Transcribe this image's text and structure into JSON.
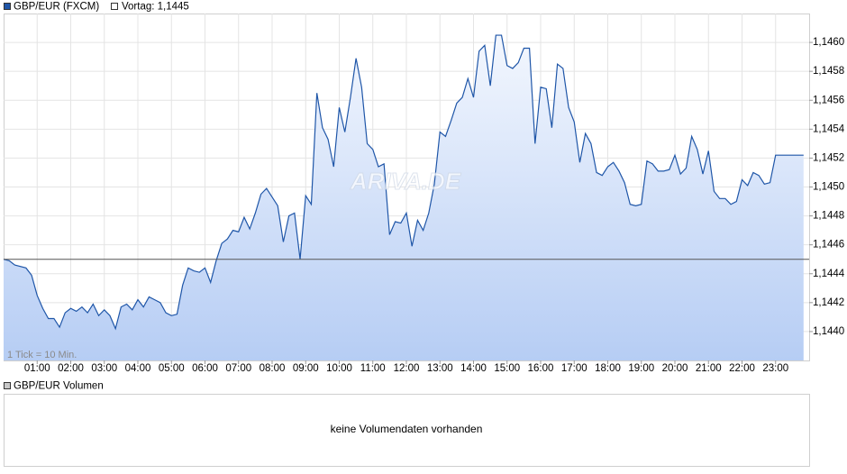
{
  "chart_data": {
    "type": "area",
    "annotation": "1 Tick = 10 Min.",
    "watermark": "ARIVA.DE",
    "x": [
      0,
      10,
      20,
      40,
      50,
      60,
      70,
      80,
      90,
      100,
      110,
      120,
      130,
      140,
      150,
      160,
      170,
      180,
      190,
      200,
      210,
      220,
      230,
      240,
      250,
      260,
      270,
      280,
      290,
      300,
      310,
      320,
      330,
      340,
      350,
      360,
      370,
      380,
      390,
      400,
      410,
      420,
      430,
      440,
      450,
      460,
      470,
      480,
      490,
      500,
      510,
      520,
      530,
      540,
      550,
      560,
      570,
      580,
      590,
      600,
      610,
      620,
      630,
      640,
      650,
      660,
      670,
      680,
      690,
      700,
      710,
      720,
      730,
      740,
      750,
      760,
      770,
      780,
      790,
      800,
      810,
      820,
      830,
      840,
      850,
      860,
      870,
      880,
      890,
      900,
      910,
      920,
      930,
      940,
      950,
      960,
      970,
      980,
      990,
      1000,
      1010,
      1020,
      1030,
      1040,
      1050,
      1060,
      1070,
      1080,
      1090,
      1100,
      1110,
      1120,
      1130,
      1140,
      1150,
      1160,
      1170,
      1180,
      1190,
      1200,
      1210,
      1220,
      1230,
      1240,
      1250,
      1260,
      1270,
      1280,
      1290,
      1300,
      1310,
      1320,
      1330,
      1340,
      1350,
      1360,
      1370,
      1380,
      1390,
      1430
    ],
    "series": [
      {
        "name": "GBP/EUR (FXCM)",
        "color": "#1f56a8",
        "values": [
          1.1445,
          1.14449,
          1.14446,
          1.14444,
          1.14439,
          1.14425,
          1.14416,
          1.14409,
          1.14409,
          1.14403,
          1.14413,
          1.14416,
          1.14414,
          1.14417,
          1.14413,
          1.14419,
          1.14411,
          1.14415,
          1.14411,
          1.14402,
          1.14417,
          1.14419,
          1.14415,
          1.14422,
          1.14417,
          1.14424,
          1.14422,
          1.1442,
          1.14413,
          1.14411,
          1.14412,
          1.14432,
          1.14444,
          1.14442,
          1.14441,
          1.14444,
          1.14434,
          1.14449,
          1.14461,
          1.14464,
          1.1447,
          1.14469,
          1.14479,
          1.14471,
          1.14482,
          1.14495,
          1.14499,
          1.14493,
          1.14487,
          1.14462,
          1.1448,
          1.14482,
          1.1445,
          1.14494,
          1.14488,
          1.14565,
          1.14541,
          1.14533,
          1.14514,
          1.14555,
          1.14538,
          1.14562,
          1.14589,
          1.14569,
          1.1453,
          1.14526,
          1.14514,
          1.14516,
          1.14467,
          1.14476,
          1.14475,
          1.14482,
          1.14459,
          1.14477,
          1.1447,
          1.14482,
          1.14502,
          1.14538,
          1.14535,
          1.14546,
          1.14558,
          1.14562,
          1.14575,
          1.14562,
          1.14594,
          1.14598,
          1.1457,
          1.14605,
          1.14605,
          1.14584,
          1.14582,
          1.14586,
          1.14596,
          1.14596,
          1.1453,
          1.14569,
          1.14568,
          1.14541,
          1.14585,
          1.14582,
          1.14555,
          1.14545,
          1.14517,
          1.14537,
          1.1453,
          1.1451,
          1.14508,
          1.14514,
          1.14517,
          1.14511,
          1.14503,
          1.14488,
          1.14487,
          1.14488,
          1.14518,
          1.14516,
          1.14511,
          1.14511,
          1.14512,
          1.14522,
          1.14509,
          1.14513,
          1.14535,
          1.14526,
          1.14509,
          1.14525,
          1.14497,
          1.14492,
          1.14492,
          1.14488,
          1.1449,
          1.14505,
          1.14501,
          1.1451,
          1.14508,
          1.14502,
          1.14503,
          1.14522,
          1.14522,
          1.14522
        ]
      }
    ],
    "reference_line": {
      "name": "Vortag: 1,1445",
      "value": 1.1445,
      "color": "#555555"
    },
    "xlim": [
      0,
      1440
    ],
    "xticks": [
      {
        "value": 60,
        "label": "01:00"
      },
      {
        "value": 120,
        "label": "02:00"
      },
      {
        "value": 180,
        "label": "03:00"
      },
      {
        "value": 240,
        "label": "04:00"
      },
      {
        "value": 300,
        "label": "05:00"
      },
      {
        "value": 360,
        "label": "06:00"
      },
      {
        "value": 420,
        "label": "07:00"
      },
      {
        "value": 480,
        "label": "08:00"
      },
      {
        "value": 540,
        "label": "09:00"
      },
      {
        "value": 600,
        "label": "10:00"
      },
      {
        "value": 660,
        "label": "11:00"
      },
      {
        "value": 720,
        "label": "12:00"
      },
      {
        "value": 780,
        "label": "13:00"
      },
      {
        "value": 840,
        "label": "14:00"
      },
      {
        "value": 900,
        "label": "15:00"
      },
      {
        "value": 960,
        "label": "16:00"
      },
      {
        "value": 1020,
        "label": "17:00"
      },
      {
        "value": 1080,
        "label": "18:00"
      },
      {
        "value": 1140,
        "label": "19:00"
      },
      {
        "value": 1200,
        "label": "20:00"
      },
      {
        "value": 1260,
        "label": "21:00"
      },
      {
        "value": 1320,
        "label": "22:00"
      },
      {
        "value": 1380,
        "label": "23:00"
      }
    ],
    "ylim": [
      1.1438,
      1.1462
    ],
    "yticks": [
      {
        "value": 1.144,
        "label": "1,1440"
      },
      {
        "value": 1.1442,
        "label": "1,1442"
      },
      {
        "value": 1.1444,
        "label": "1,1444"
      },
      {
        "value": 1.1446,
        "label": "1,1446"
      },
      {
        "value": 1.1448,
        "label": "1,1448"
      },
      {
        "value": 1.145,
        "label": "1,1450"
      },
      {
        "value": 1.1452,
        "label": "1,1452"
      },
      {
        "value": 1.1454,
        "label": "1,1454"
      },
      {
        "value": 1.1456,
        "label": "1,1456"
      },
      {
        "value": 1.1458,
        "label": "1,1458"
      },
      {
        "value": 1.146,
        "label": "1,1460"
      }
    ],
    "grid": true,
    "volume": {
      "legend": "GBP/EUR Volumen",
      "message": "keine Volumendaten vorhanden"
    }
  }
}
